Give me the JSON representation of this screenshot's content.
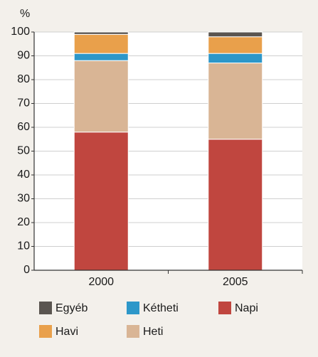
{
  "chart_data": {
    "type": "stacked_bar",
    "y_axis_label": "%",
    "categories": [
      "2000",
      "2005"
    ],
    "series": [
      {
        "name": "Napi",
        "color": "#c0463f",
        "values": [
          58,
          55
        ]
      },
      {
        "name": "Heti",
        "color": "#d9b595",
        "values": [
          30,
          32
        ]
      },
      {
        "name": "Kétheti",
        "color": "#2d97c9",
        "values": [
          3,
          4
        ]
      },
      {
        "name": "Havi",
        "color": "#e9a04b",
        "values": [
          8,
          7
        ]
      },
      {
        "name": "Egyéb",
        "color": "#5a5550",
        "values": [
          1,
          2
        ]
      }
    ],
    "ylim": [
      0,
      100
    ],
    "yticks": [
      0,
      10,
      20,
      30,
      40,
      50,
      60,
      70,
      80,
      90,
      100
    ],
    "grid": true
  }
}
